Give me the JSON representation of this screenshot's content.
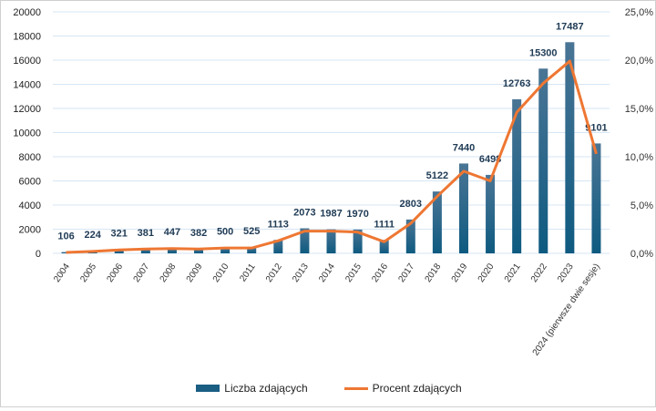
{
  "chart_data": {
    "type": "bar+line",
    "categories": [
      "2004",
      "2005",
      "2006",
      "2007",
      "2008",
      "2009",
      "2010",
      "2011",
      "2012",
      "2013",
      "2014",
      "2015",
      "2016",
      "2017",
      "2018",
      "2019",
      "2020",
      "2021",
      "2022",
      "2023",
      "2024 (pierwsze dwie sesje)"
    ],
    "series": [
      {
        "name": "Liczba zdających",
        "type": "bar",
        "axis": "left",
        "color": "#1b5e84",
        "values": [
          106,
          224,
          321,
          381,
          447,
          382,
          500,
          525,
          1113,
          2073,
          1987,
          1970,
          1111,
          2803,
          5122,
          7440,
          6498,
          12763,
          15300,
          17487,
          9101
        ],
        "labels": [
          "106",
          "224",
          "321",
          "381",
          "447",
          "382",
          "500",
          "525",
          "1113",
          "2073",
          "1987",
          "1970",
          "1111",
          "2803",
          "5122",
          "7440",
          "6498",
          "12763",
          "15300",
          "17487",
          "9101"
        ]
      },
      {
        "name": "Procent zdających",
        "type": "line",
        "axis": "right",
        "color": "#ee7733",
        "values": [
          0.1,
          0.2,
          0.35,
          0.45,
          0.5,
          0.45,
          0.55,
          0.55,
          1.3,
          2.3,
          2.3,
          2.2,
          1.2,
          3.1,
          5.9,
          8.5,
          7.5,
          14.6,
          17.6,
          19.9,
          10.3
        ]
      }
    ],
    "left_axis": {
      "ylim": [
        0,
        20000
      ],
      "ticks": [
        "0",
        "2000",
        "4000",
        "6000",
        "8000",
        "10000",
        "12000",
        "14000",
        "16000",
        "18000",
        "20000"
      ]
    },
    "right_axis": {
      "ylim": [
        0,
        25
      ],
      "ticks": [
        "0,0%",
        "5,0%",
        "10,0%",
        "15,0%",
        "20,0%",
        "25,0%"
      ]
    },
    "grid": true,
    "legend": "bottom"
  },
  "legend": {
    "bar_label": "Liczba zdających",
    "line_label": "Procent zdających"
  }
}
